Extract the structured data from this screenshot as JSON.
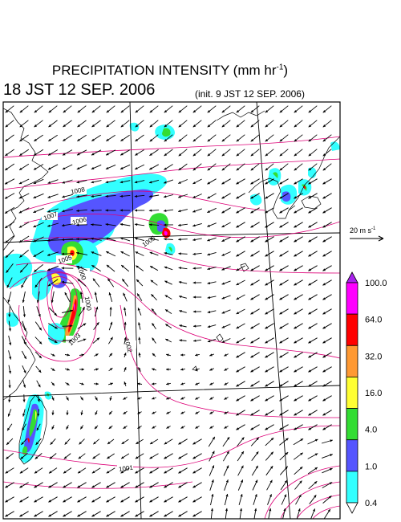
{
  "title": {
    "main": "PRECIPITATION INTENSITY (mm hr",
    "exponent": "-1",
    "close": ")"
  },
  "valid_time": "18 JST 12 SEP. 2006",
  "init_time": "(init. 9 JST 12 SEP. 2006)",
  "wind_reference": {
    "label": "20 m s",
    "exponent": "-1"
  },
  "colorbar": {
    "labels": [
      "100.0",
      "64.0",
      "32.0",
      "16.0",
      "4.0",
      "1.0",
      "0.4"
    ],
    "colors": [
      "#ff00ff",
      "#ff0000",
      "#ff9933",
      "#ffff33",
      "#33dd33",
      "#5555ff",
      "#33ffff"
    ],
    "over_color": "#aa22ee",
    "under_color": "#ffffff"
  },
  "isobar_labels": [
    "1008",
    "1007",
    "1006",
    "1005",
    "1005",
    "1000",
    "1003",
    "1000",
    "1002",
    "1001"
  ],
  "colors": {
    "isobar": "#dd0077",
    "coast": "#000000",
    "grid": "#000000",
    "arrow": "#000000"
  }
}
